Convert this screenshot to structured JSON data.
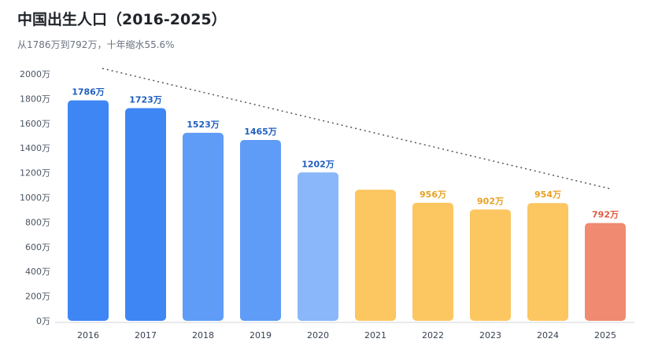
{
  "header": {
    "title": "中国出生人口（2016-2025）",
    "subtitle": "从1786万到792万，十年缩水55.6%"
  },
  "colors": {
    "blue_dark": "#3f86f5",
    "blue_mid": "#5f9cf7",
    "blue_light": "#8ab7fa",
    "amber": "#fcc661",
    "red": "#f08a70",
    "label_blue": "#1f5fbf",
    "label_amber": "#e8a020",
    "label_red": "#e05a3f"
  },
  "chart_data": {
    "type": "bar",
    "title": "中国出生人口（2016-2025）",
    "subtitle": "从1786万到792万，十年缩水55.6%",
    "categories": [
      "2016",
      "2017",
      "2018",
      "2019",
      "2020",
      "2021",
      "2022",
      "2023",
      "2024",
      "2025"
    ],
    "values": [
      1786,
      1723,
      1523,
      1465,
      1202,
      1062,
      956,
      902,
      954,
      792
    ],
    "data_labels": [
      "1786万",
      "1723万",
      "1523万",
      "1465万",
      "1202万",
      "",
      "956万",
      "902万",
      "954万",
      "792万"
    ],
    "ylim": [
      0,
      2000
    ],
    "yticks": [
      0,
      200,
      400,
      600,
      800,
      1000,
      1200,
      1400,
      1600,
      1800,
      2000
    ],
    "ytick_labels": [
      "0万",
      "200万",
      "400万",
      "600万",
      "800万",
      "1000万",
      "1200万",
      "1400万",
      "1600万",
      "1800万",
      "2000万"
    ],
    "xlabel": "",
    "ylabel": "",
    "grid": false,
    "legend": "none",
    "trend_line": "dotted"
  }
}
